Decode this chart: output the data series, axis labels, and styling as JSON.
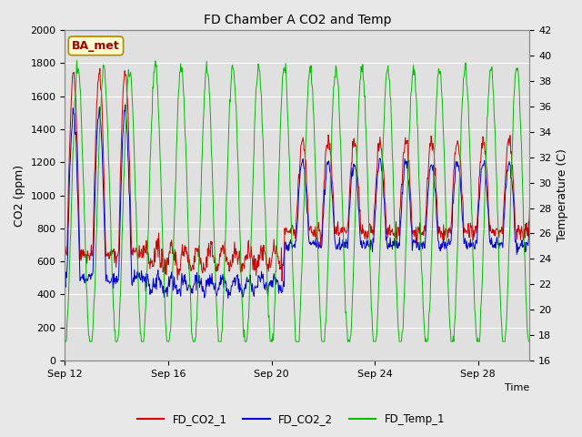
{
  "title": "FD Chamber A CO2 and Temp",
  "xlabel": "Time",
  "ylabel_left": "CO2 (ppm)",
  "ylabel_right": "Temperature (C)",
  "ylim_left": [
    0,
    2000
  ],
  "ylim_right": [
    16,
    42
  ],
  "yticks_left": [
    0,
    200,
    400,
    600,
    800,
    1000,
    1200,
    1400,
    1600,
    1800,
    2000
  ],
  "yticks_right": [
    16,
    18,
    20,
    22,
    24,
    26,
    28,
    30,
    32,
    34,
    36,
    38,
    40,
    42
  ],
  "n_days": 18,
  "n_per_day": 48,
  "xtick_labels": [
    "Sep 12",
    "Sep 16",
    "Sep 20",
    "Sep 24",
    "Sep 28"
  ],
  "xtick_positions": [
    0,
    4,
    8,
    12,
    16
  ],
  "color_co2_1": "#cc0000",
  "color_co2_2": "#0000cc",
  "color_temp": "#00bb00",
  "legend_labels": [
    "FD_CO2_1",
    "FD_CO2_2",
    "FD_Temp_1"
  ],
  "annotation_text": "BA_met",
  "annotation_bg": "#ffffcc",
  "annotation_border": "#aa8800",
  "fig_bg": "#e8e8e8",
  "plot_bg": "#e0e0e0",
  "grid_color": "#ffffff",
  "linewidth": 0.7,
  "figsize": [
    6.4,
    4.8
  ],
  "dpi": 100
}
